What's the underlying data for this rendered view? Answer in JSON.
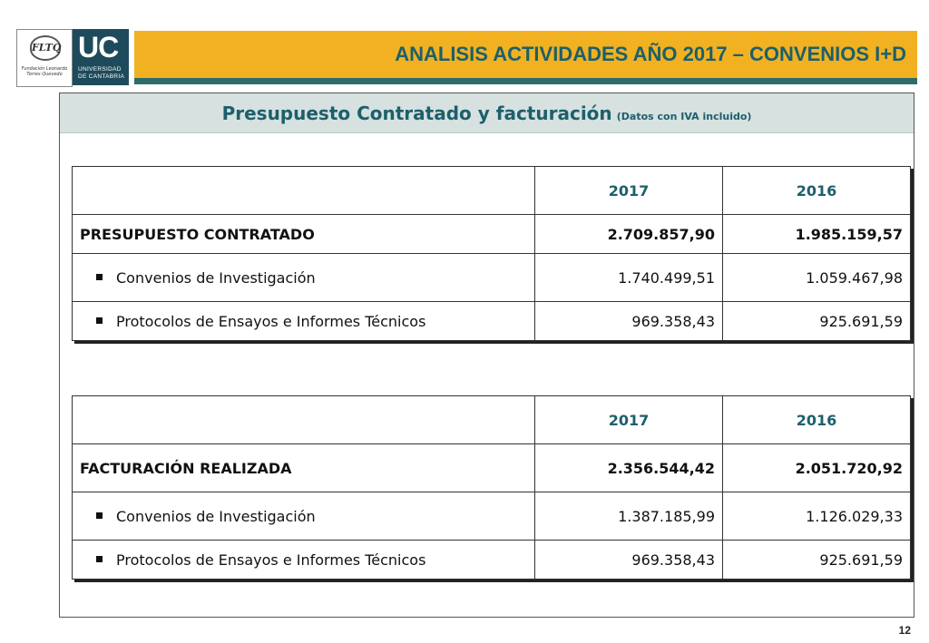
{
  "logos": {
    "fltq_mark": "FLTQ",
    "fltq_sub": "Fundación Leonardo Torres Quevedo",
    "uc_big": "UC",
    "uc_small_1": "UNIVERSIDAD",
    "uc_small_2": "DE CANTABRIA"
  },
  "header": {
    "title": "ANALISIS ACTIVIDADES AÑO 2017 – CONVENIOS I+D"
  },
  "section": {
    "title": "Presupuesto Contratado y facturación",
    "note": "(Datos con IVA incluido)"
  },
  "tables": [
    {
      "columns": [
        "",
        "2017",
        "2016"
      ],
      "rows": [
        {
          "label": "PRESUPUESTO CONTRATADO",
          "v2017": "2.709.857,90",
          "v2016": "1.985.159,57"
        },
        {
          "label": "Convenios de Investigación",
          "v2017": "1.740.499,51",
          "v2016": "1.059.467,98"
        },
        {
          "label": "Protocolos de Ensayos e Informes Técnicos",
          "v2017": "969.358,43",
          "v2016": "925.691,59"
        }
      ]
    },
    {
      "columns": [
        "",
        "2017",
        "2016"
      ],
      "rows": [
        {
          "label": "FACTURACIÓN REALIZADA",
          "v2017": "2.356.544,42",
          "v2016": "2.051.720,92"
        },
        {
          "label": "Convenios de Investigación",
          "v2017": "1.387.185,99",
          "v2016": "1.126.029,33"
        },
        {
          "label": "Protocolos de Ensayos e Informes Técnicos",
          "v2017": "969.358,43",
          "v2016": "925.691,59"
        }
      ]
    }
  ],
  "page": {
    "number": "12"
  }
}
